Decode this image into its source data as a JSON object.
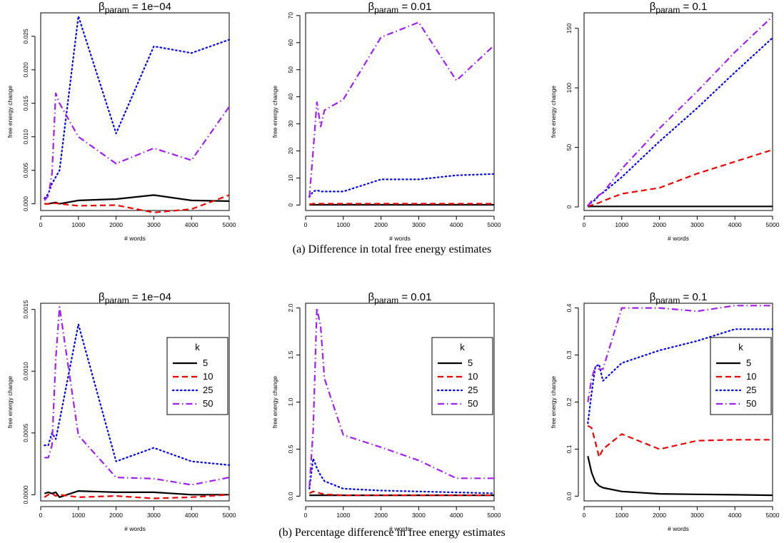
{
  "figure": {
    "captions": [
      "(a)  Difference in total free energy estimates",
      "(b)  Percentage difference in free energy estimates"
    ],
    "title_prefix": "β",
    "title_sub": "param",
    "series_colors": {
      "5": "#000000",
      "10": "#ee0000",
      "25": "#0000ee",
      "50": "#a020f0"
    },
    "series_dash": {
      "5": "solid",
      "10": "dashed",
      "25": "dotted",
      "50": "dashdot"
    }
  },
  "legend": {
    "title": "k",
    "entries": [
      "5",
      "10",
      "25",
      "50"
    ]
  },
  "chart_data": [
    {
      "type": "line",
      "row": "a",
      "title_value": " = 1e−04",
      "xlabel": "# words",
      "ylabel": "free energy change",
      "xlim": [
        0,
        5000
      ],
      "ylim": [
        -0.001,
        0.0285
      ],
      "xticks": [
        0,
        1000,
        2000,
        3000,
        4000,
        5000
      ],
      "yticks": [
        0.0,
        0.005,
        0.01,
        0.015,
        0.02,
        0.025
      ],
      "ytick_labels": [
        "0.000",
        "0.005",
        "0.010",
        "0.015",
        "0.020",
        "0.025"
      ],
      "x": [
        100,
        200,
        300,
        400,
        500,
        1000,
        2000,
        3000,
        4000,
        5000
      ],
      "legend": false,
      "series": [
        {
          "name": "5",
          "values": [
            0.0,
            0.0,
            0.0001,
            0.0002,
            0.0,
            0.0005,
            0.0007,
            0.0013,
            0.0005,
            0.0004
          ]
        },
        {
          "name": "10",
          "values": [
            0.0,
            0.0,
            0.0,
            0.0001,
            0.0,
            -0.0003,
            -0.0002,
            -0.0013,
            -0.0008,
            0.0013
          ]
        },
        {
          "name": "25",
          "values": [
            0.0008,
            0.0015,
            0.003,
            0.004,
            0.005,
            0.028,
            0.0105,
            0.0235,
            0.0225,
            0.0245
          ]
        },
        {
          "name": "50",
          "values": [
            0.0005,
            0.0012,
            0.0045,
            0.0165,
            0.015,
            0.01,
            0.006,
            0.0083,
            0.0065,
            0.0145
          ]
        }
      ]
    },
    {
      "type": "line",
      "row": "a",
      "title_value": " = 0.01",
      "xlabel": "# words",
      "ylabel": "free energy change",
      "xlim": [
        0,
        5000
      ],
      "ylim": [
        -2,
        71
      ],
      "xticks": [
        0,
        1000,
        2000,
        3000,
        4000,
        5000
      ],
      "yticks": [
        0,
        10,
        20,
        30,
        40,
        50,
        60,
        70
      ],
      "ytick_labels": [
        "0",
        "10",
        "20",
        "30",
        "40",
        "50",
        "60",
        "70"
      ],
      "x": [
        100,
        200,
        300,
        400,
        500,
        1000,
        2000,
        3000,
        4000,
        5000
      ],
      "legend": false,
      "series": [
        {
          "name": "5",
          "values": [
            0.1,
            0.1,
            0.1,
            0.1,
            0.1,
            0.1,
            0.1,
            0.1,
            0.1,
            0.1
          ]
        },
        {
          "name": "10",
          "values": [
            0.3,
            0.5,
            0.5,
            0.5,
            0.5,
            0.5,
            0.5,
            0.5,
            0.5,
            0.5
          ]
        },
        {
          "name": "25",
          "values": [
            3.0,
            5.0,
            5.5,
            5.0,
            5.0,
            5.0,
            9.5,
            9.5,
            11.0,
            11.5
          ]
        },
        {
          "name": "50",
          "values": [
            3.0,
            20.0,
            38.0,
            29.0,
            35.0,
            39.0,
            62.0,
            67.5,
            46.0,
            59.0
          ]
        }
      ]
    },
    {
      "type": "line",
      "row": "a",
      "title_value": " = 0.1",
      "xlabel": "# words",
      "ylabel": "free energy change",
      "xlim": [
        0,
        5000
      ],
      "ylim": [
        -3,
        163
      ],
      "xticks": [
        0,
        1000,
        2000,
        3000,
        4000,
        5000
      ],
      "yticks": [
        0,
        50,
        100,
        150
      ],
      "ytick_labels": [
        "0",
        "50",
        "100",
        "150"
      ],
      "x": [
        100,
        200,
        300,
        400,
        500,
        1000,
        2000,
        3000,
        4000,
        5000
      ],
      "legend": false,
      "series": [
        {
          "name": "5",
          "values": [
            0.3,
            0.4,
            0.4,
            0.4,
            0.4,
            0.4,
            0.4,
            0.4,
            0.4,
            0.4
          ]
        },
        {
          "name": "10",
          "values": [
            0.5,
            1.5,
            2.5,
            3.5,
            5.0,
            11.0,
            16.0,
            28.0,
            38.0,
            48.0
          ]
        },
        {
          "name": "25",
          "values": [
            1.0,
            4.0,
            6.0,
            10.0,
            12.0,
            25.0,
            55.0,
            83.0,
            113.0,
            142.0
          ]
        },
        {
          "name": "50",
          "values": [
            1.0,
            5.0,
            7.0,
            10.0,
            12.0,
            32.0,
            66.0,
            97.0,
            130.0,
            160.0
          ]
        }
      ]
    },
    {
      "type": "line",
      "row": "b",
      "title_value": " = 1e−04",
      "xlabel": "# words",
      "ylabel": "free energy change",
      "xlim": [
        0,
        5000
      ],
      "ylim": [
        -5e-05,
        0.00155
      ],
      "xticks": [
        0,
        1000,
        2000,
        3000,
        4000,
        5000
      ],
      "yticks": [
        0.0,
        0.0005,
        0.001,
        0.0015
      ],
      "ytick_labels": [
        "0.0000",
        "0.0005",
        "0.0010",
        "0.0015"
      ],
      "x": [
        100,
        200,
        300,
        400,
        500,
        1000,
        2000,
        3000,
        4000,
        5000
      ],
      "legend": true,
      "series": [
        {
          "name": "5",
          "values": [
            1e-05,
            2e-05,
            1e-05,
            2e-05,
            -2e-05,
            3e-05,
            2e-05,
            2e-05,
            0.0,
            0.0
          ]
        },
        {
          "name": "10",
          "values": [
            -2e-05,
            0.0,
            1e-05,
            -1e-05,
            0.0,
            -2e-05,
            -1e-05,
            -3e-05,
            -2e-05,
            0.0
          ]
        },
        {
          "name": "25",
          "values": [
            0.0004,
            0.0004,
            0.0005,
            0.00045,
            0.0006,
            0.00138,
            0.00027,
            0.00038,
            0.00027,
            0.00024
          ]
        },
        {
          "name": "50",
          "values": [
            0.0003,
            0.0003,
            0.0004,
            0.0011,
            0.00152,
            0.00048,
            0.00014,
            0.00013,
            8e-05,
            0.00014
          ]
        }
      ]
    },
    {
      "type": "line",
      "row": "b",
      "title_value": " = 0.01",
      "xlabel": "# words",
      "ylabel": "free energy change",
      "xlim": [
        0,
        5000
      ],
      "ylim": [
        -0.05,
        2.05
      ],
      "xticks": [
        0,
        1000,
        2000,
        3000,
        4000,
        5000
      ],
      "yticks": [
        0.0,
        0.5,
        1.0,
        1.5,
        2.0
      ],
      "ytick_labels": [
        "0.0",
        "0.5",
        "1.0",
        "1.5",
        "2.0"
      ],
      "x": [
        100,
        200,
        300,
        400,
        500,
        1000,
        2000,
        3000,
        4000,
        5000
      ],
      "legend": true,
      "series": [
        {
          "name": "5",
          "values": [
            0.01,
            0.01,
            0.01,
            0.01,
            0.01,
            0.01,
            0.01,
            0.01,
            0.01,
            0.01
          ]
        },
        {
          "name": "10",
          "values": [
            0.03,
            0.05,
            0.04,
            0.03,
            0.02,
            0.01,
            0.01,
            0.01,
            0.01,
            0.01
          ]
        },
        {
          "name": "25",
          "values": [
            0.08,
            0.4,
            0.3,
            0.22,
            0.16,
            0.08,
            0.06,
            0.05,
            0.04,
            0.03
          ]
        },
        {
          "name": "50",
          "values": [
            0.1,
            0.7,
            2.0,
            1.8,
            1.25,
            0.65,
            0.52,
            0.38,
            0.19,
            0.19
          ]
        }
      ]
    },
    {
      "type": "line",
      "row": "b",
      "title_value": " = 0.1",
      "xlabel": "# words",
      "ylabel": "free energy change",
      "xlim": [
        0,
        5000
      ],
      "ylim": [
        -0.01,
        0.41
      ],
      "xticks": [
        0,
        1000,
        2000,
        3000,
        4000,
        5000
      ],
      "yticks": [
        0.0,
        0.1,
        0.2,
        0.3,
        0.4
      ],
      "ytick_labels": [
        "0.0",
        "0.1",
        "0.2",
        "0.3",
        "0.4"
      ],
      "x": [
        100,
        200,
        300,
        400,
        500,
        1000,
        2000,
        3000,
        4000,
        5000
      ],
      "legend": true,
      "series": [
        {
          "name": "5",
          "values": [
            0.085,
            0.05,
            0.03,
            0.022,
            0.018,
            0.01,
            0.005,
            0.004,
            0.003,
            0.002
          ]
        },
        {
          "name": "10",
          "values": [
            0.15,
            0.145,
            0.115,
            0.083,
            0.1,
            0.132,
            0.1,
            0.118,
            0.12,
            0.12
          ]
        },
        {
          "name": "25",
          "values": [
            0.155,
            0.22,
            0.275,
            0.28,
            0.245,
            0.283,
            0.31,
            0.33,
            0.355,
            0.355
          ]
        },
        {
          "name": "50",
          "values": [
            0.2,
            0.25,
            0.275,
            0.27,
            0.27,
            0.4,
            0.4,
            0.393,
            0.405,
            0.405
          ]
        }
      ]
    }
  ]
}
